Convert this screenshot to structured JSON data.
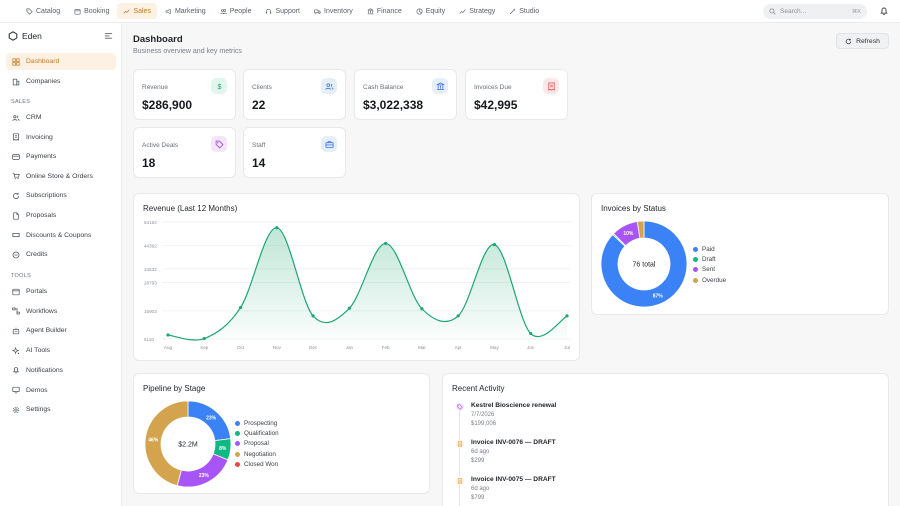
{
  "top_nav": {
    "tabs": [
      {
        "label": "Catalog",
        "icon": "tag-icon",
        "active": false
      },
      {
        "label": "Booking",
        "icon": "calendar-icon",
        "active": false
      },
      {
        "label": "Sales",
        "icon": "trend-icon",
        "active": true
      },
      {
        "label": "Marketing",
        "icon": "megaphone-icon",
        "active": false
      },
      {
        "label": "People",
        "icon": "people-icon",
        "active": false
      },
      {
        "label": "Support",
        "icon": "headset-icon",
        "active": false
      },
      {
        "label": "Inventory",
        "icon": "truck-icon",
        "active": false
      },
      {
        "label": "Finance",
        "icon": "bank-icon",
        "active": false
      },
      {
        "label": "Equity",
        "icon": "pie-icon",
        "active": false
      },
      {
        "label": "Strategy",
        "icon": "chart-line-icon",
        "active": false
      },
      {
        "label": "Studio",
        "icon": "wand-icon",
        "active": false
      }
    ],
    "search_placeholder": "Search...",
    "search_shortcut": "⌘K"
  },
  "sidebar": {
    "brand": "Eden",
    "items": [
      {
        "label": "Dashboard",
        "icon": "grid-icon",
        "active": true
      },
      {
        "label": "Companies",
        "icon": "building-icon",
        "active": false
      }
    ],
    "sales_label": "SALES",
    "sales_items": [
      {
        "label": "CRM",
        "icon": "users-icon"
      },
      {
        "label": "Invoicing",
        "icon": "invoice-icon"
      },
      {
        "label": "Payments",
        "icon": "card-icon"
      },
      {
        "label": "Online Store & Orders",
        "icon": "cart-icon"
      },
      {
        "label": "Subscriptions",
        "icon": "refresh-icon"
      },
      {
        "label": "Proposals",
        "icon": "document-icon"
      },
      {
        "label": "Discounts & Coupons",
        "icon": "coupon-icon"
      },
      {
        "label": "Credits",
        "icon": "credit-icon"
      }
    ],
    "tools_label": "TOOLS",
    "tools_items": [
      {
        "label": "Portals",
        "icon": "portal-icon"
      },
      {
        "label": "Workflows",
        "icon": "workflow-icon"
      },
      {
        "label": "Agent Builder",
        "icon": "bot-icon"
      },
      {
        "label": "AI Tools",
        "icon": "sparkle-icon"
      },
      {
        "label": "Notifications",
        "icon": "bell-icon"
      },
      {
        "label": "Demos",
        "icon": "monitor-icon"
      },
      {
        "label": "Settings",
        "icon": "gear-icon"
      }
    ]
  },
  "page": {
    "title": "Dashboard",
    "subtitle": "Business overview and key metrics",
    "refresh_label": "Refresh"
  },
  "metrics": [
    {
      "label": "Revenue",
      "value": "$286,900",
      "icon": "dollar-icon",
      "bg": "#e3f6ee",
      "fg": "#1ea672"
    },
    {
      "label": "Clients",
      "value": "22",
      "icon": "users-icon",
      "bg": "#e6eefc",
      "fg": "#3c78e0"
    },
    {
      "label": "Cash Balance",
      "value": "$3,022,338",
      "icon": "bank-icon",
      "bg": "#e6eefc",
      "fg": "#3c78e0"
    },
    {
      "label": "Invoices Due",
      "value": "$42,995",
      "icon": "invoice-icon",
      "bg": "#fde8e8",
      "fg": "#e0504f"
    },
    {
      "label": "Active Deals",
      "value": "18",
      "icon": "tag-icon",
      "bg": "#f3e6fb",
      "fg": "#a24ad6"
    },
    {
      "label": "Staff",
      "value": "14",
      "icon": "briefcase-icon",
      "bg": "#e6eefc",
      "fg": "#3c78e0"
    }
  ],
  "revenue_chart": {
    "title": "Revenue (Last 12 Months)"
  },
  "invoices_chart": {
    "title": "Invoices by Status",
    "center_label": "76 total"
  },
  "pipeline_chart": {
    "title": "Pipeline by Stage",
    "center_label": "$2.2M"
  },
  "activity": {
    "title": "Recent Activity",
    "items": [
      {
        "title": "Kestrel Bioscience renewal",
        "sub": "7/7/2026",
        "amount": "$199,006",
        "icon": "tag-icon",
        "color": "#a24ad6",
        "bg": "#f3e6fb"
      },
      {
        "title": "Invoice INV-0076 — DRAFT",
        "sub": "6d ago",
        "amount": "$299",
        "icon": "invoice-icon",
        "color": "#d89a2c",
        "bg": "#fdf1e3"
      },
      {
        "title": "Invoice INV-0075 — DRAFT",
        "sub": "6d ago",
        "amount": "$799",
        "icon": "invoice-icon",
        "color": "#d89a2c",
        "bg": "#fdf1e3"
      }
    ]
  },
  "chart_data": [
    {
      "type": "area",
      "title": "Revenue (Last 12 Months)",
      "categories": [
        "Aug",
        "Sep",
        "Oct",
        "Nov",
        "Dec",
        "Jan",
        "Feb",
        "Mar",
        "Apr",
        "May",
        "Jun",
        "Jul"
      ],
      "yticks": [
        "5110",
        "16903",
        "28793",
        "34532",
        "44392",
        "54192"
      ],
      "ylim": [
        5110,
        54192
      ],
      "values": [
        6800,
        5300,
        18300,
        51800,
        14800,
        18000,
        45200,
        17800,
        14800,
        44700,
        7400,
        14800
      ],
      "color": "#1ea672",
      "grid": true
    },
    {
      "type": "pie",
      "title": "Invoices by Status",
      "donut": true,
      "labels": [
        "Paid",
        "Draft",
        "Sent",
        "Overdue"
      ],
      "values": [
        87,
        0.5,
        10,
        2.5
      ],
      "slice_labels": [
        "87%",
        "",
        "10%",
        ""
      ],
      "colors": [
        "#3b82f6",
        "#10b981",
        "#a855f7",
        "#d4a34e"
      ],
      "legend": "right"
    },
    {
      "type": "pie",
      "title": "Pipeline by Stage",
      "donut": true,
      "labels": [
        "Prospecting",
        "Qualification",
        "Proposal",
        "Negotiation",
        "Closed Won"
      ],
      "values": [
        23,
        8,
        23,
        46,
        0
      ],
      "slice_labels": [
        "23%",
        "8%",
        "23%",
        "46%",
        ""
      ],
      "colors": [
        "#3b82f6",
        "#10b981",
        "#a855f7",
        "#d4a34e",
        "#ef4444"
      ],
      "legend": "right"
    }
  ]
}
